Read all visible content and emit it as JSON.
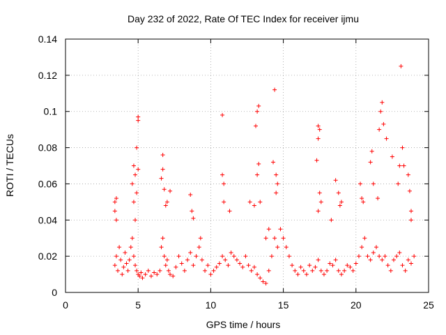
{
  "chart_data": {
    "type": "scatter",
    "title": "Day 232 of 2022, Rate Of TEC Index for receiver ijmu",
    "xlabel": "GPS time / hours",
    "ylabel": "ROTI / TECUs",
    "xlim": [
      0,
      25
    ],
    "ylim": [
      0,
      0.14
    ],
    "x_ticks": [
      "0",
      "5",
      "10",
      "15",
      "20",
      "25"
    ],
    "y_ticks": [
      "0",
      "0.02",
      "0.04",
      "0.06",
      "0.08",
      "0.1",
      "0.12",
      "0.14"
    ],
    "grid": true,
    "marker": "plus",
    "color": "#ff0000",
    "series": [
      {
        "x": [
          3.4,
          3.5,
          3.6,
          3.7,
          3.8,
          3.9,
          4.0,
          4.1,
          4.2,
          4.3,
          4.4,
          4.5,
          4.6,
          4.7,
          4.8,
          4.9,
          5.0,
          5.1,
          5.2,
          5.3,
          5.5,
          5.7,
          5.9,
          6.1,
          6.3,
          6.5,
          6.6,
          6.7,
          6.8,
          6.9,
          7.0,
          7.1,
          7.2,
          7.4,
          7.6,
          7.8,
          8.0,
          8.2,
          8.4,
          8.6,
          8.8,
          9.0,
          9.2,
          9.4,
          9.6,
          9.8,
          10.0,
          10.2,
          10.4,
          10.6,
          10.8,
          11.0,
          11.2,
          11.4,
          11.6,
          11.8,
          12.0,
          12.2,
          12.4,
          12.6,
          12.8,
          13.0,
          13.2,
          13.4,
          13.6,
          13.8,
          14.0,
          14.2,
          14.4,
          14.6,
          14.8,
          15.0,
          15.2,
          15.4,
          15.6,
          15.8,
          16.0,
          16.2,
          16.4,
          16.6,
          16.8,
          17.0,
          17.2,
          17.4,
          17.6,
          17.8,
          18.0,
          18.2,
          18.4,
          18.6,
          18.8,
          19.0,
          19.2,
          19.4,
          19.6,
          19.8,
          20.0,
          20.2,
          20.4,
          20.6,
          20.8,
          21.0,
          21.2,
          21.4,
          21.6,
          21.8,
          22.0,
          22.2,
          22.4,
          22.6,
          22.8,
          23.0,
          23.2,
          23.4,
          23.6,
          23.8,
          24.0
        ],
        "y": [
          0.015,
          0.02,
          0.012,
          0.025,
          0.018,
          0.01,
          0.014,
          0.022,
          0.016,
          0.012,
          0.018,
          0.025,
          0.03,
          0.02,
          0.015,
          0.012,
          0.01,
          0.009,
          0.011,
          0.008,
          0.01,
          0.012,
          0.009,
          0.011,
          0.01,
          0.012,
          0.025,
          0.03,
          0.02,
          0.015,
          0.018,
          0.012,
          0.01,
          0.009,
          0.014,
          0.02,
          0.016,
          0.012,
          0.018,
          0.022,
          0.015,
          0.02,
          0.025,
          0.018,
          0.012,
          0.015,
          0.01,
          0.012,
          0.014,
          0.016,
          0.02,
          0.018,
          0.015,
          0.022,
          0.02,
          0.018,
          0.016,
          0.014,
          0.02,
          0.015,
          0.012,
          0.014,
          0.01,
          0.008,
          0.006,
          0.005,
          0.012,
          0.02,
          0.03,
          0.025,
          0.035,
          0.03,
          0.025,
          0.02,
          0.015,
          0.012,
          0.01,
          0.014,
          0.012,
          0.01,
          0.015,
          0.012,
          0.014,
          0.018,
          0.012,
          0.01,
          0.012,
          0.016,
          0.015,
          0.018,
          0.012,
          0.01,
          0.012,
          0.015,
          0.014,
          0.012,
          0.016,
          0.02,
          0.025,
          0.03,
          0.02,
          0.018,
          0.022,
          0.025,
          0.02,
          0.018,
          0.02,
          0.015,
          0.012,
          0.018,
          0.02,
          0.022,
          0.015,
          0.012,
          0.018,
          0.016,
          0.02
        ]
      },
      {
        "x": [
          3.4,
          3.4,
          3.5,
          3.5,
          4.6,
          4.7,
          4.7,
          4.8,
          4.8,
          4.9,
          4.9,
          5.0,
          5.0,
          5.0,
          6.6,
          6.7,
          6.7,
          6.8,
          6.9,
          7.0,
          7.2,
          8.6,
          8.7,
          8.8,
          9.3,
          10.8,
          10.8,
          10.9,
          10.9,
          11.3,
          12.7,
          13.0,
          13.1,
          13.2,
          13.3,
          13.3,
          13.2,
          13.4,
          13.8,
          14.0,
          14.3,
          14.4,
          14.5,
          14.5,
          14.6,
          17.3,
          17.4,
          17.4,
          17.5,
          17.5,
          17.6,
          17.4,
          18.3,
          18.6,
          18.8,
          18.9,
          19.0,
          20.3,
          20.4,
          20.5,
          21.0,
          21.1,
          21.2,
          21.5,
          21.6,
          21.7,
          21.8,
          21.9,
          22.1,
          22.5,
          22.9,
          23.0,
          23.1,
          23.2,
          23.3,
          23.6,
          23.7,
          23.8,
          23.8
        ],
        "y": [
          0.05,
          0.045,
          0.052,
          0.04,
          0.06,
          0.07,
          0.05,
          0.065,
          0.04,
          0.055,
          0.08,
          0.097,
          0.095,
          0.068,
          0.063,
          0.076,
          0.068,
          0.057,
          0.048,
          0.05,
          0.056,
          0.054,
          0.045,
          0.041,
          0.03,
          0.098,
          0.065,
          0.06,
          0.05,
          0.045,
          0.05,
          0.048,
          0.092,
          0.1,
          0.103,
          0.071,
          0.065,
          0.05,
          0.03,
          0.035,
          0.072,
          0.112,
          0.055,
          0.065,
          0.06,
          0.073,
          0.092,
          0.085,
          0.09,
          0.055,
          0.05,
          0.045,
          0.04,
          0.062,
          0.055,
          0.048,
          0.05,
          0.06,
          0.052,
          0.05,
          0.072,
          0.078,
          0.06,
          0.052,
          0.09,
          0.1,
          0.105,
          0.093,
          0.085,
          0.075,
          0.06,
          0.07,
          0.125,
          0.08,
          0.07,
          0.065,
          0.056,
          0.04,
          0.045
        ]
      }
    ]
  }
}
